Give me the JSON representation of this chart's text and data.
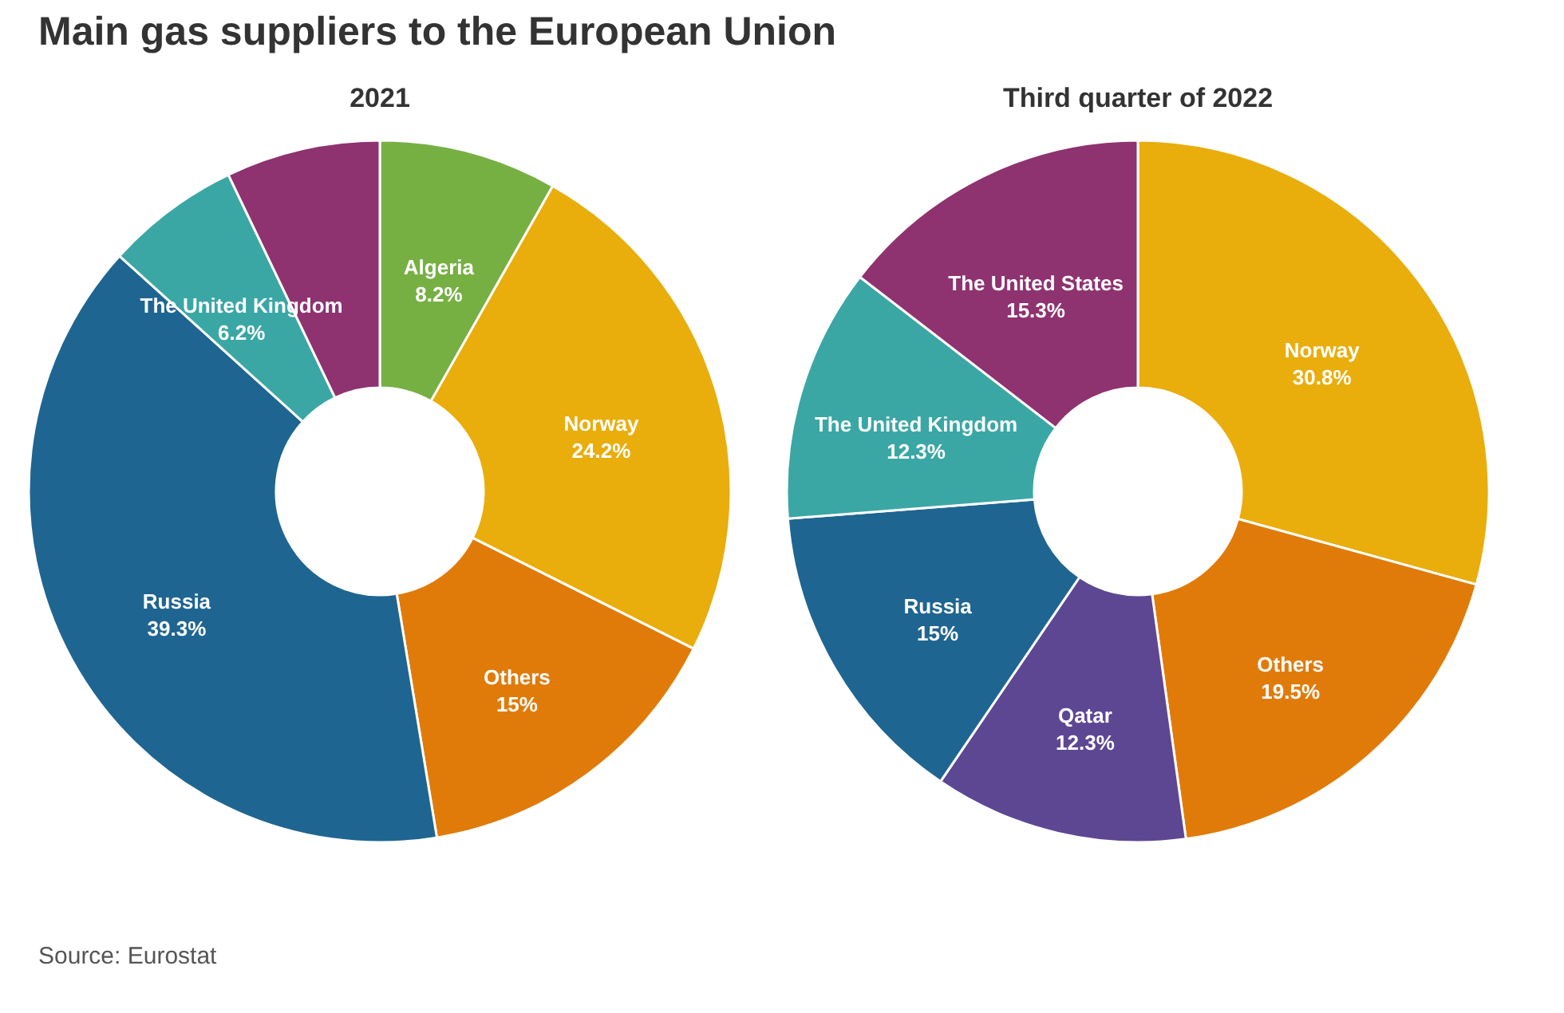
{
  "chart_data": [
    {
      "type": "donut",
      "title": "Main gas suppliers to the European Union",
      "subtitle": "2021",
      "categories": [
        "Algeria",
        "Norway",
        "Others",
        "Russia",
        "The United Kingdom",
        null
      ],
      "values": [
        8.2,
        24.2,
        15,
        39.3,
        6.2,
        7.1
      ],
      "value_labels": [
        "8.2%",
        "24.2%",
        "15%",
        "39.3%",
        "6.2%",
        null
      ],
      "colors": [
        "#76b043",
        "#e9ad0c",
        "#e07b0a",
        "#1f6591",
        "#3aa7a5",
        "#8e3270"
      ],
      "annotations": [
        "Source: Eurostat"
      ]
    },
    {
      "type": "donut",
      "subtitle": "Third quarter of 2022",
      "categories": [
        "Norway",
        "Others",
        "Qatar",
        "Russia",
        "The United Kingdom",
        "The United States"
      ],
      "values": [
        30.8,
        19.5,
        12.3,
        15,
        12.3,
        15.3
      ],
      "value_labels": [
        "30.8%",
        "19.5%",
        "12.3%",
        "15%",
        "12.3%",
        "15.3%"
      ],
      "colors": [
        "#e9ad0c",
        "#e07b0a",
        "#5d4793",
        "#1f6591",
        "#3aa7a5",
        "#8e3270"
      ]
    }
  ]
}
